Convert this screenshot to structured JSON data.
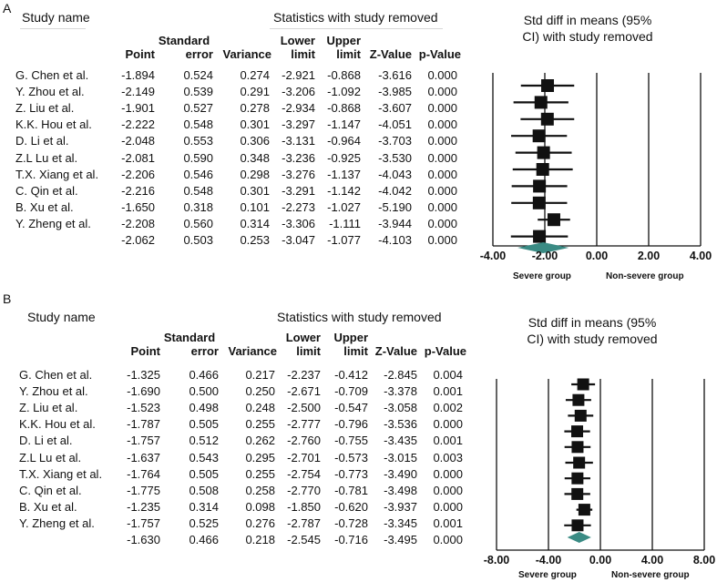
{
  "panels": {
    "A": {
      "letter": "A",
      "study_name_label": "Study name",
      "stats_header": "Statistics with study removed",
      "plot_title_line1": "Std diff in means (95%",
      "plot_title_line2": "CI) with study removed",
      "col_point": "Point",
      "col_se_1": "Standard",
      "col_se_2": "error",
      "col_var": "Variance",
      "col_lower_1": "Lower",
      "col_lower_2": "limit",
      "col_upper_1": "Upper",
      "col_upper_2": "limit",
      "col_z": "Z-Value",
      "col_p": "p-Value",
      "rows": [
        {
          "study": "G. Chen et al.",
          "point": "-1.894",
          "se": "0.524",
          "var": "0.274",
          "lower": "-2.921",
          "upper": "-0.868",
          "z": "-3.616",
          "p": "0.000"
        },
        {
          "study": "Y. Zhou et al.",
          "point": "-2.149",
          "se": "0.539",
          "var": "0.291",
          "lower": "-3.206",
          "upper": "-1.092",
          "z": "-3.985",
          "p": "0.000"
        },
        {
          "study": "Z. Liu et al.",
          "point": "-1.901",
          "se": "0.527",
          "var": "0.278",
          "lower": "-2.934",
          "upper": "-0.868",
          "z": "-3.607",
          "p": "0.000"
        },
        {
          "study": "K.K. Hou et al.",
          "point": "-2.222",
          "se": "0.548",
          "var": "0.301",
          "lower": "-3.297",
          "upper": "-1.147",
          "z": "-4.051",
          "p": "0.000"
        },
        {
          "study": "D. Li et al.",
          "point": "-2.048",
          "se": "0.553",
          "var": "0.306",
          "lower": "-3.131",
          "upper": "-0.964",
          "z": "-3.703",
          "p": "0.000"
        },
        {
          "study": "Z.L Lu et al.",
          "point": "-2.081",
          "se": "0.590",
          "var": "0.348",
          "lower": "-3.236",
          "upper": "-0.925",
          "z": "-3.530",
          "p": "0.000"
        },
        {
          "study": "T.X. Xiang et al.",
          "point": "-2.206",
          "se": "0.546",
          "var": "0.298",
          "lower": "-3.276",
          "upper": "-1.137",
          "z": "-4.043",
          "p": "0.000"
        },
        {
          "study": "C. Qin et al.",
          "point": "-2.216",
          "se": "0.548",
          "var": "0.301",
          "lower": "-3.291",
          "upper": "-1.142",
          "z": "-4.042",
          "p": "0.000"
        },
        {
          "study": "B. Xu et al.",
          "point": "-1.650",
          "se": "0.318",
          "var": "0.101",
          "lower": "-2.273",
          "upper": "-1.027",
          "z": "-5.190",
          "p": "0.000"
        },
        {
          "study": "Y. Zheng et al.",
          "point": "-2.208",
          "se": "0.560",
          "var": "0.314",
          "lower": "-3.306",
          "upper": "-1.111",
          "z": "-3.944",
          "p": "0.000"
        }
      ],
      "summary": {
        "study": "",
        "point": "-2.062",
        "se": "0.503",
        "var": "0.253",
        "lower": "-3.047",
        "upper": "-1.077",
        "z": "-4.103",
        "p": "0.000"
      },
      "axis_ticks": [
        "-4.00",
        "-2.00",
        "0.00",
        "2.00",
        "4.00"
      ],
      "group_left": "Severe group",
      "group_right": "Non-severe group"
    },
    "B": {
      "letter": "B",
      "study_name_label": "Study name",
      "stats_header": "Statistics with study removed",
      "plot_title_line1": "Std diff in means (95%",
      "plot_title_line2": "CI) with study removed",
      "col_point": "Point",
      "col_se_1": "Standard",
      "col_se_2": "error",
      "col_var": "Variance",
      "col_lower_1": "Lower",
      "col_lower_2": "limit",
      "col_upper_1": "Upper",
      "col_upper_2": "limit",
      "col_z": "Z-Value",
      "col_p": "p-Value",
      "rows": [
        {
          "study": "G. Chen et al.",
          "point": "-1.325",
          "se": "0.466",
          "var": "0.217",
          "lower": "-2.237",
          "upper": "-0.412",
          "z": "-2.845",
          "p": "0.004"
        },
        {
          "study": "Y. Zhou et al.",
          "point": "-1.690",
          "se": "0.500",
          "var": "0.250",
          "lower": "-2.671",
          "upper": "-0.709",
          "z": "-3.378",
          "p": "0.001"
        },
        {
          "study": "Z. Liu et al.",
          "point": "-1.523",
          "se": "0.498",
          "var": "0.248",
          "lower": "-2.500",
          "upper": "-0.547",
          "z": "-3.058",
          "p": "0.002"
        },
        {
          "study": "K.K. Hou et al.",
          "point": "-1.787",
          "se": "0.505",
          "var": "0.255",
          "lower": "-2.777",
          "upper": "-0.796",
          "z": "-3.536",
          "p": "0.000"
        },
        {
          "study": "D. Li et al.",
          "point": "-1.757",
          "se": "0.512",
          "var": "0.262",
          "lower": "-2.760",
          "upper": "-0.755",
          "z": "-3.435",
          "p": "0.001"
        },
        {
          "study": "Z.L Lu et al.",
          "point": "-1.637",
          "se": "0.543",
          "var": "0.295",
          "lower": "-2.701",
          "upper": "-0.573",
          "z": "-3.015",
          "p": "0.003"
        },
        {
          "study": "T.X. Xiang et al.",
          "point": "-1.764",
          "se": "0.505",
          "var": "0.255",
          "lower": "-2.754",
          "upper": "-0.773",
          "z": "-3.490",
          "p": "0.000"
        },
        {
          "study": "C. Qin et al.",
          "point": "-1.775",
          "se": "0.508",
          "var": "0.258",
          "lower": "-2.770",
          "upper": "-0.781",
          "z": "-3.498",
          "p": "0.000"
        },
        {
          "study": "B. Xu et al.",
          "point": "-1.235",
          "se": "0.314",
          "var": "0.098",
          "lower": "-1.850",
          "upper": "-0.620",
          "z": "-3.937",
          "p": "0.000"
        },
        {
          "study": "Y. Zheng et al.",
          "point": "-1.757",
          "se": "0.525",
          "var": "0.276",
          "lower": "-2.787",
          "upper": "-0.728",
          "z": "-3.345",
          "p": "0.001"
        }
      ],
      "summary": {
        "study": "",
        "point": "-1.630",
        "se": "0.466",
        "var": "0.218",
        "lower": "-2.545",
        "upper": "-0.716",
        "z": "-3.495",
        "p": "0.000"
      },
      "axis_ticks": [
        "-8.00",
        "-4.00",
        "0.00",
        "4.00",
        "8.00"
      ],
      "group_left": "Severe group",
      "group_right": "Non-severe group"
    }
  },
  "colors": {
    "marker": "#111111",
    "summary_diamond": "#3a8b84",
    "text": "#111111",
    "rule": "#d8d8d8"
  },
  "chart_data": [
    {
      "type": "scatter",
      "panel": "A",
      "title": "Std diff in means (95% CI) with study removed",
      "categories": [
        "G. Chen et al.",
        "Y. Zhou et al.",
        "Z. Liu et al.",
        "K.K. Hou et al.",
        "D. Li et al.",
        "Z.L Lu et al.",
        "T.X. Xiang et al.",
        "C. Qin et al.",
        "B. Xu et al.",
        "Y. Zheng et al."
      ],
      "point": [
        -1.894,
        -2.149,
        -1.901,
        -2.222,
        -2.048,
        -2.081,
        -2.206,
        -2.216,
        -1.65,
        -2.208
      ],
      "lower": [
        -2.921,
        -3.206,
        -2.934,
        -3.297,
        -3.131,
        -3.236,
        -3.276,
        -3.291,
        -2.273,
        -3.306
      ],
      "upper": [
        -0.868,
        -1.092,
        -0.868,
        -1.147,
        -0.964,
        -0.925,
        -1.137,
        -1.142,
        -1.027,
        -1.111
      ],
      "summary": {
        "point": -2.062,
        "lower": -3.047,
        "upper": -1.077
      },
      "xlim": [
        -4,
        4
      ],
      "xticks": [
        -4,
        -2,
        0,
        2,
        4
      ],
      "grid": false
    },
    {
      "type": "scatter",
      "panel": "B",
      "title": "Std diff in means (95% CI) with study removed",
      "categories": [
        "G. Chen et al.",
        "Y. Zhou et al.",
        "Z. Liu et al.",
        "K.K. Hou et al.",
        "D. Li et al.",
        "Z.L Lu et al.",
        "T.X. Xiang et al.",
        "C. Qin et al.",
        "B. Xu et al.",
        "Y. Zheng et al."
      ],
      "point": [
        -1.325,
        -1.69,
        -1.523,
        -1.787,
        -1.757,
        -1.637,
        -1.764,
        -1.775,
        -1.235,
        -1.757
      ],
      "lower": [
        -2.237,
        -2.671,
        -2.5,
        -2.777,
        -2.76,
        -2.701,
        -2.754,
        -2.77,
        -1.85,
        -2.787
      ],
      "upper": [
        -0.412,
        -0.709,
        -0.547,
        -0.796,
        -0.755,
        -0.573,
        -0.773,
        -0.781,
        -0.62,
        -0.728
      ],
      "summary": {
        "point": -1.63,
        "lower": -2.545,
        "upper": -0.716
      },
      "xlim": [
        -8,
        8
      ],
      "xticks": [
        -8,
        -4,
        0,
        4,
        8
      ],
      "grid": false
    }
  ]
}
